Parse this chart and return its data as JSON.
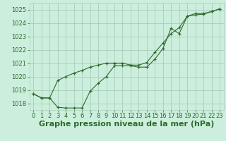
{
  "xlabel": "Graphe pression niveau de la mer (hPa)",
  "ylabel": "",
  "bg_color": "#cceedd",
  "grid_color": "#aaccbb",
  "line_color": "#2d6a2d",
  "marker_color": "#2d6a2d",
  "ylim": [
    1017.5,
    1025.5
  ],
  "xlim": [
    -0.5,
    23.5
  ],
  "yticks": [
    1018,
    1019,
    1020,
    1021,
    1022,
    1023,
    1024,
    1025
  ],
  "xticks": [
    0,
    1,
    2,
    3,
    4,
    5,
    6,
    7,
    8,
    9,
    10,
    11,
    12,
    13,
    14,
    15,
    16,
    17,
    18,
    19,
    20,
    21,
    22,
    23
  ],
  "series1_x": [
    0,
    1,
    2,
    3,
    4,
    5,
    6,
    7,
    8,
    9,
    10,
    11,
    12,
    13,
    14,
    15,
    16,
    17,
    18,
    19,
    20,
    21,
    22,
    23
  ],
  "series1_y": [
    1018.7,
    1018.4,
    1018.4,
    1017.7,
    1017.65,
    1017.65,
    1017.65,
    1018.9,
    1019.5,
    1020.0,
    1020.8,
    1020.8,
    1020.8,
    1020.7,
    1020.7,
    1021.3,
    1022.1,
    1023.6,
    1023.2,
    1024.5,
    1024.7,
    1024.7,
    1024.85,
    1025.05
  ],
  "series2_x": [
    0,
    1,
    2,
    3,
    4,
    5,
    6,
    7,
    8,
    9,
    10,
    11,
    12,
    13,
    14,
    15,
    16,
    17,
    18,
    19,
    20,
    21,
    22,
    23
  ],
  "series2_y": [
    1018.7,
    1018.4,
    1018.4,
    1019.7,
    1020.0,
    1020.25,
    1020.45,
    1020.7,
    1020.85,
    1021.0,
    1021.0,
    1021.0,
    1020.85,
    1020.85,
    1021.05,
    1021.8,
    1022.5,
    1023.2,
    1023.65,
    1024.5,
    1024.6,
    1024.65,
    1024.85,
    1025.05
  ],
  "title_fontsize": 7,
  "xlabel_fontsize": 8,
  "tick_fontsize": 6
}
